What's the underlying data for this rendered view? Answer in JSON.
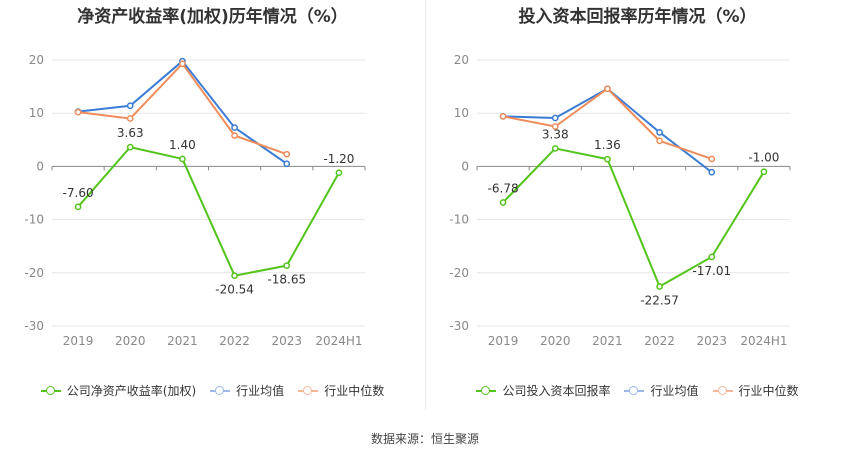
{
  "source": "数据来源：恒生聚源",
  "chart_data": [
    {
      "type": "line",
      "title": "净资产收益率(加权)历年情况（%）",
      "categories": [
        "2019",
        "2020",
        "2021",
        "2022",
        "2023",
        "2024H1"
      ],
      "ylim": [
        -30,
        20
      ],
      "yticks": [
        20,
        10,
        0,
        -10,
        -20,
        -30
      ],
      "grid": true,
      "legend_position": "bottom",
      "series": [
        {
          "name": "公司净资产收益率(加权)",
          "color": "#52c41a",
          "values": [
            -7.6,
            3.63,
            1.4,
            -20.54,
            -18.65,
            -1.2
          ],
          "labels": [
            "-7.60",
            "3.63",
            "1.40",
            "-20.54",
            "-18.65",
            "-1.20"
          ]
        },
        {
          "name": "行业均值",
          "color": "#3a7bd5",
          "values": [
            10.3,
            11.4,
            19.8,
            7.3,
            0.5,
            null
          ]
        },
        {
          "name": "行业中位数",
          "color": "#f08c5a",
          "values": [
            10.2,
            9.0,
            19.3,
            5.8,
            2.3,
            null
          ]
        }
      ]
    },
    {
      "type": "line",
      "title": "投入资本回报率历年情况（%）",
      "categories": [
        "2019",
        "2020",
        "2021",
        "2022",
        "2023",
        "2024H1"
      ],
      "ylim": [
        -30,
        20
      ],
      "yticks": [
        20,
        10,
        0,
        -10,
        -20,
        -30
      ],
      "grid": true,
      "legend_position": "bottom",
      "series": [
        {
          "name": "公司投入资本回报率",
          "color": "#52c41a",
          "values": [
            -6.78,
            3.38,
            1.36,
            -22.57,
            -17.01,
            -1.0
          ],
          "labels": [
            "-6.78",
            "3.38",
            "1.36",
            "-22.57",
            "-17.01",
            "-1.00"
          ]
        },
        {
          "name": "行业均值",
          "color": "#3a7bd5",
          "values": [
            9.4,
            9.1,
            14.6,
            6.4,
            -1.1,
            null
          ]
        },
        {
          "name": "行业中位数",
          "color": "#f08c5a",
          "values": [
            9.4,
            7.5,
            14.6,
            4.8,
            1.4,
            null
          ]
        }
      ]
    }
  ]
}
